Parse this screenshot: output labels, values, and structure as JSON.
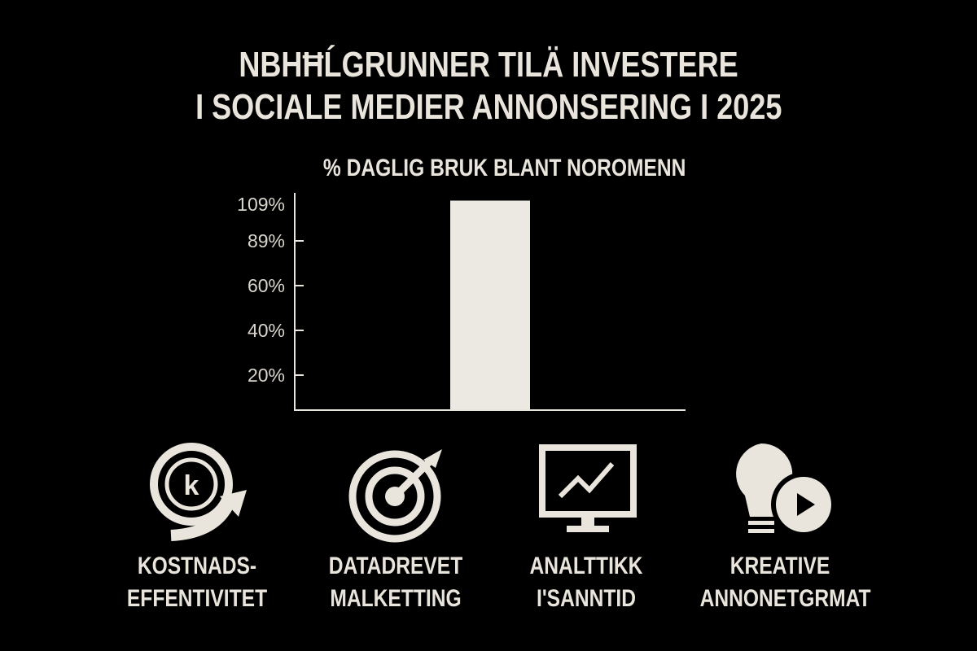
{
  "title": {
    "line1": "NBHĦĹGRUNNER TILÄ INVESTERE",
    "line2": "I SOCIALE MEDIER ANNONSERING I 2025"
  },
  "chart_data": {
    "type": "bar",
    "title": "% DAGLIG BRUK BLANT NOROMENN",
    "ytick_labels": [
      "20%",
      "40%",
      "60%",
      "89%",
      "109%"
    ],
    "categories": [
      ""
    ],
    "values": [
      98
    ],
    "grid": false,
    "bar_color": "#ece9e2"
  },
  "features": [
    {
      "icon": "coin-arrow-icon",
      "line1": "KOSTNADS-",
      "line2": "EFFENTIVITET"
    },
    {
      "icon": "target-icon",
      "line1": "DATADREVET",
      "line2": "MALKETTING"
    },
    {
      "icon": "monitor-chart-icon",
      "line1": "ANALTTIKK",
      "line2": "I'SANNTID"
    },
    {
      "icon": "lightbulb-play-icon",
      "line1": "KREATIVE",
      "line2": "ANNONETGRMAT"
    }
  ],
  "colors": {
    "background": "#000000",
    "foreground": "#e9e5dd"
  }
}
